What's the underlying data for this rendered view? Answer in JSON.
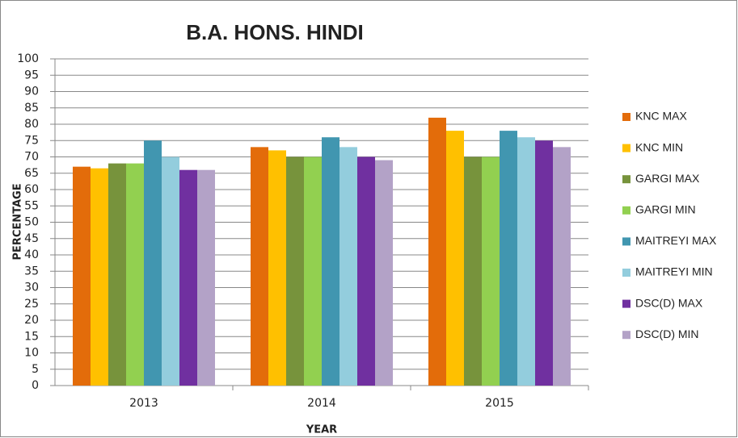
{
  "chart_data": {
    "type": "bar",
    "title": "B.A. HONS.  HINDI",
    "x_label": "YEAR",
    "y_label": "PERCENTAGE",
    "categories": [
      "2013",
      "2014",
      "2015"
    ],
    "series": [
      {
        "name": "KNC MAX",
        "color": "#e36c0a",
        "values": [
          67,
          73,
          82
        ]
      },
      {
        "name": "KNC MIN",
        "color": "#ffc000",
        "values": [
          66.5,
          72,
          78
        ]
      },
      {
        "name": "GARGI MAX",
        "color": "#77933c",
        "values": [
          68,
          70,
          70
        ]
      },
      {
        "name": "GARGI MIN",
        "color": "#92d050",
        "values": [
          68,
          70,
          70
        ]
      },
      {
        "name": "MAITREYI MAX",
        "color": "#4196b0",
        "values": [
          75,
          76,
          78
        ]
      },
      {
        "name": "MAITREYI MIN",
        "color": "#93cddd",
        "values": [
          70,
          73,
          76
        ]
      },
      {
        "name": "DSC(D) MAX",
        "color": "#7030a0",
        "values": [
          66,
          70,
          75
        ]
      },
      {
        "name": "DSC(D) MIN",
        "color": "#b3a2c7",
        "values": [
          66,
          69,
          73
        ]
      }
    ],
    "ylim": [
      0,
      100
    ],
    "yticks": [
      0,
      5,
      10,
      15,
      20,
      25,
      30,
      35,
      40,
      45,
      50,
      55,
      60,
      65,
      70,
      75,
      80,
      85,
      90,
      95,
      100
    ],
    "grid": true,
    "legend": "right"
  }
}
